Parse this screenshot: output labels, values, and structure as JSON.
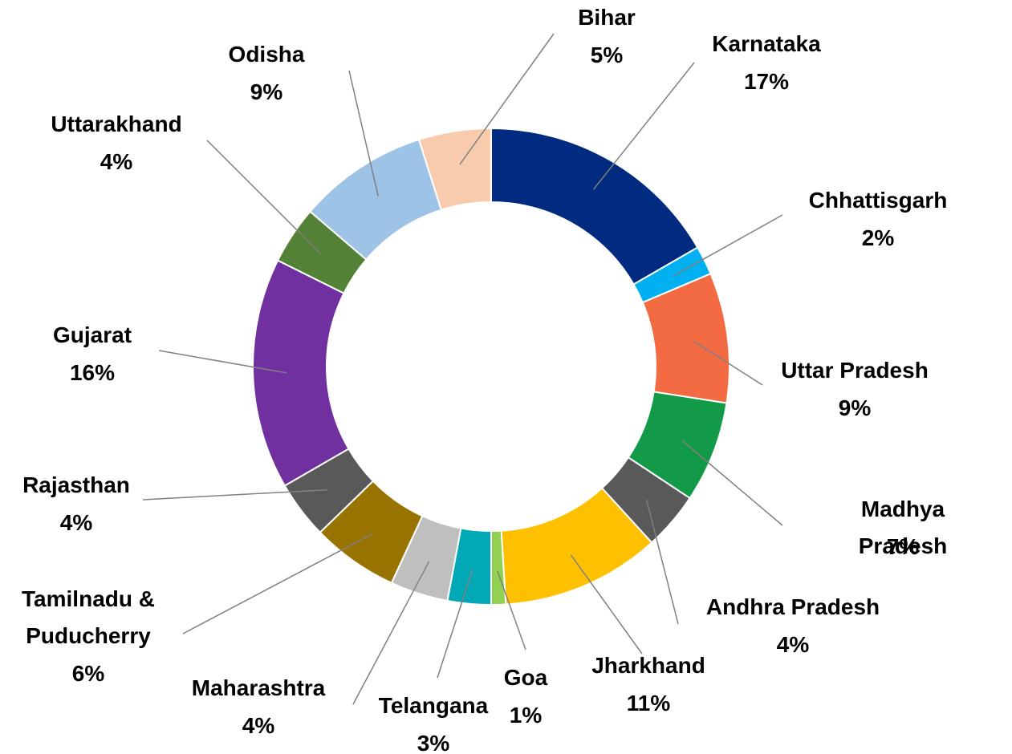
{
  "chart_data": {
    "type": "donut",
    "categories": [
      "Karnataka",
      "Chhattisgarh",
      "Uttar Pradesh",
      "Madhya Pradesh",
      "Andhra Pradesh",
      "Jharkhand",
      "Goa",
      "Telangana",
      "Maharashtra",
      "Tamilnadu & Puducherry",
      "Rajasthan",
      "Gujarat",
      "Uttarakhand",
      "Odisha",
      "Bihar"
    ],
    "values": [
      17,
      2,
      9,
      7,
      4,
      11,
      1,
      3,
      4,
      6,
      4,
      16,
      4,
      9,
      5
    ],
    "value_labels": [
      "17%",
      "2%",
      "9%",
      "7%",
      "4%",
      "11%",
      "1%",
      "3%",
      "4%",
      "6%",
      "4%",
      "16%",
      "4%",
      "9%",
      "5%"
    ],
    "colors": [
      "#002b80",
      "#00b0f0",
      "#f26b43",
      "#139a48",
      "#595959",
      "#ffc000",
      "#92d050",
      "#00a9b5",
      "#bfbfbf",
      "#997300",
      "#595959",
      "#7030a0",
      "#538135",
      "#9dc3e6",
      "#f8cbad"
    ]
  }
}
